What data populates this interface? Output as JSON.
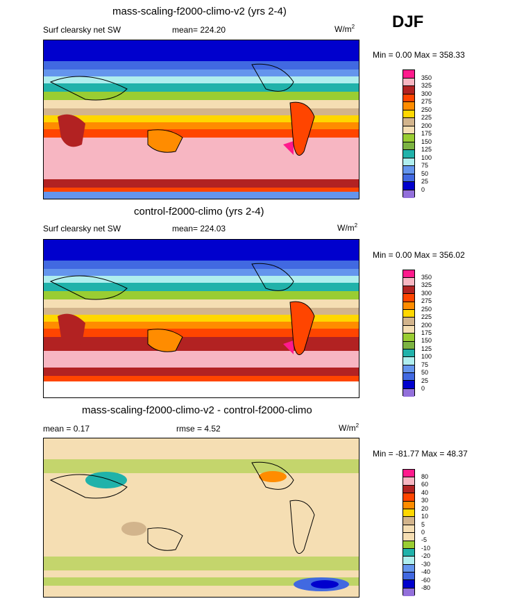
{
  "season": "DJF",
  "panels": [
    {
      "title": "mass-scaling-f2000-climo-v2 (yrs 2-4)",
      "left_label": "Surf clearsky net SW",
      "mean_label": "mean= 224.20",
      "units": "W/m",
      "units_sup": "2",
      "minmax": "Min =   0.00 Max = 358.33"
    },
    {
      "title": "control-f2000-climo (yrs 2-4)",
      "left_label": "Surf clearsky net SW",
      "mean_label": "mean= 224.03",
      "units": "W/m",
      "units_sup": "2",
      "minmax": "Min =   0.00 Max = 356.02"
    },
    {
      "title": "mass-scaling-f2000-climo-v2 - control-f2000-climo",
      "left_label": "mean =   0.17",
      "mean_label": "rmse =   4.52",
      "units": "W/m",
      "units_sup": "2",
      "minmax": "Min = -81.77 Max =  48.37"
    }
  ],
  "colorbar_abs": {
    "levels": [
      "350",
      "325",
      "300",
      "275",
      "250",
      "225",
      "200",
      "175",
      "150",
      "125",
      "100",
      "75",
      "50",
      "25",
      "0"
    ],
    "colors": [
      "#ff1a8c",
      "#f7b6c2",
      "#b22222",
      "#ff4500",
      "#ff8c00",
      "#ffd700",
      "#d2b48c",
      "#f5deb3",
      "#9acd32",
      "#7cb342",
      "#20b2aa",
      "#afeeee",
      "#6495ed",
      "#4169e1",
      "#0000cd",
      "#9370db"
    ]
  },
  "colorbar_diff": {
    "levels": [
      "80",
      "60",
      "40",
      "30",
      "20",
      "10",
      "5",
      "0",
      "-5",
      "-10",
      "-20",
      "-30",
      "-40",
      "-60",
      "-80"
    ],
    "colors": [
      "#ff1a8c",
      "#f7b6c2",
      "#b22222",
      "#ff4500",
      "#ff8c00",
      "#ffd700",
      "#d2b48c",
      "#f5deb3",
      "#f5deb3",
      "#9acd32",
      "#20b2aa",
      "#afeeee",
      "#6495ed",
      "#4169e1",
      "#0000cd",
      "#9370db"
    ]
  }
}
